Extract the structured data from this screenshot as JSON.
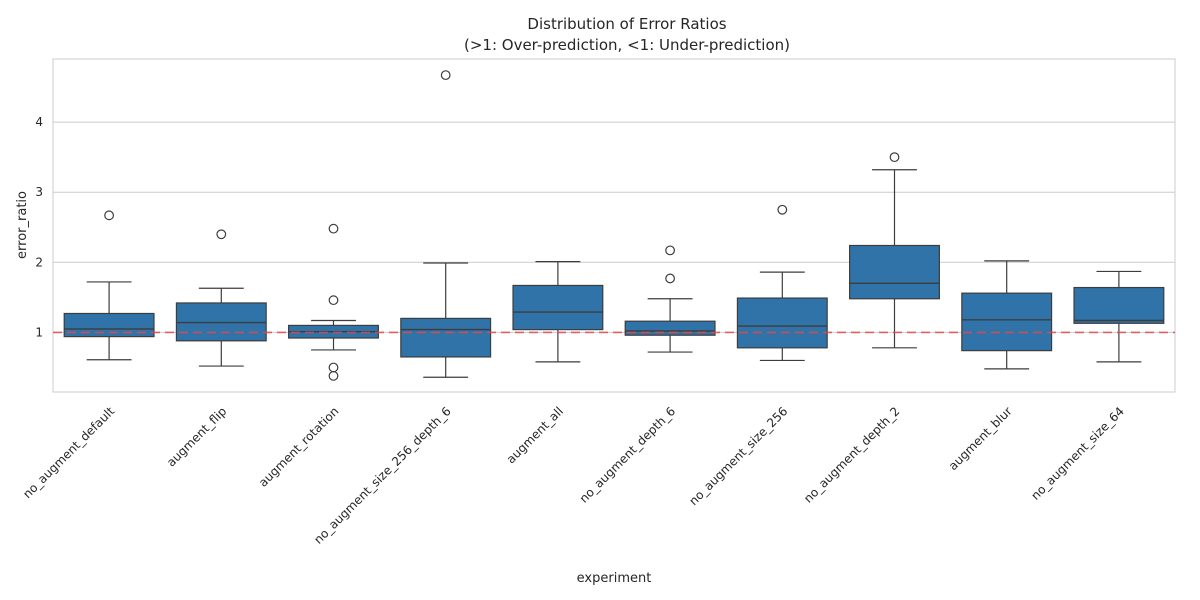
{
  "chart_data": {
    "type": "box",
    "title": "Distribution of Error Ratios",
    "subtitle": "(>1: Over-prediction, <1: Under-prediction)",
    "xlabel": "experiment",
    "ylabel": "error_ratio",
    "ylim": [
      0.15,
      4.9
    ],
    "yticks": [
      1,
      2,
      3,
      4
    ],
    "grid": true,
    "box_color": "#2f73a9",
    "reference_line": {
      "y": 1,
      "color": "#e24a4a"
    },
    "categories": [
      "no_augment_default",
      "augment_flip",
      "augment_rotation",
      "no_augment_size_256_depth_6",
      "augment_all",
      "no_augment_depth_6",
      "no_augment_size_256",
      "no_augment_depth_2",
      "augment_blur",
      "no_augment_size_64"
    ],
    "boxes": [
      {
        "whislo": 0.61,
        "q1": 0.94,
        "med": 1.05,
        "q3": 1.27,
        "whishi": 1.72,
        "fliers": [
          2.67
        ]
      },
      {
        "whislo": 0.52,
        "q1": 0.88,
        "med": 1.14,
        "q3": 1.42,
        "whishi": 1.63,
        "fliers": [
          2.4
        ]
      },
      {
        "whislo": 0.75,
        "q1": 0.92,
        "med": 1.01,
        "q3": 1.1,
        "whishi": 1.17,
        "fliers": [
          2.48,
          1.46,
          0.5,
          0.38
        ]
      },
      {
        "whislo": 0.36,
        "q1": 0.65,
        "med": 1.04,
        "q3": 1.2,
        "whishi": 1.99,
        "fliers": [
          4.67
        ]
      },
      {
        "whislo": 0.58,
        "q1": 1.04,
        "med": 1.29,
        "q3": 1.67,
        "whishi": 2.01,
        "fliers": []
      },
      {
        "whislo": 0.72,
        "q1": 0.96,
        "med": 1.02,
        "q3": 1.16,
        "whishi": 1.48,
        "fliers": [
          2.17,
          1.77
        ]
      },
      {
        "whislo": 0.6,
        "q1": 0.78,
        "med": 1.09,
        "q3": 1.49,
        "whishi": 1.86,
        "fliers": [
          2.75
        ]
      },
      {
        "whislo": 0.78,
        "q1": 1.48,
        "med": 1.7,
        "q3": 2.24,
        "whishi": 3.32,
        "fliers": [
          3.5
        ]
      },
      {
        "whislo": 0.48,
        "q1": 0.74,
        "med": 1.18,
        "q3": 1.56,
        "whishi": 2.02,
        "fliers": []
      },
      {
        "whislo": 0.58,
        "q1": 1.13,
        "med": 1.17,
        "q3": 1.64,
        "whishi": 1.87,
        "fliers": []
      }
    ]
  }
}
